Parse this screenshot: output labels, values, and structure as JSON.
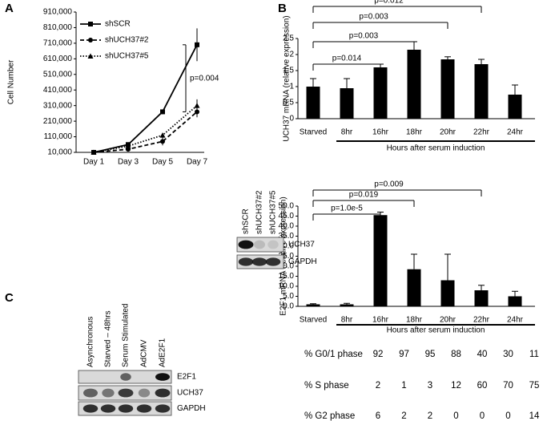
{
  "panel_labels": [
    "A",
    "B",
    "C"
  ],
  "chart_data": [
    {
      "type": "line",
      "ylabel": "Cell Number",
      "categories": [
        "Day 1",
        "Day 3",
        "Day 5",
        "Day 7"
      ],
      "ylim": [
        10000,
        910000
      ],
      "yticks": [
        {
          "value": 10000,
          "label": "10,000"
        },
        {
          "value": 110000,
          "label": "110,000"
        },
        {
          "value": 210000,
          "label": "210,000"
        },
        {
          "value": 310000,
          "label": "310,000"
        },
        {
          "value": 410000,
          "label": "410,000"
        },
        {
          "value": 510000,
          "label": "510,000"
        },
        {
          "value": 610000,
          "label": "610,000"
        },
        {
          "value": 710000,
          "label": "710,000"
        },
        {
          "value": 810000,
          "label": "810,000"
        },
        {
          "value": 910000,
          "label": "910,000"
        }
      ],
      "series": [
        {
          "name": "shSCR",
          "color": "#000000",
          "dash": "solid",
          "marker": "square",
          "values": [
            10000,
            60000,
            270000,
            700000
          ],
          "errors": [
            5000,
            15000,
            15000,
            105000
          ]
        },
        {
          "name": "shUCH37#2",
          "color": "#000000",
          "dash": "dashed",
          "marker": "circle",
          "values": [
            10000,
            30000,
            80000,
            270000
          ],
          "errors": [
            5000,
            8000,
            25000,
            35000
          ]
        },
        {
          "name": "shUCH37#5",
          "color": "#000000",
          "dash": "dotted",
          "marker": "triangle",
          "values": [
            10000,
            50000,
            120000,
            310000
          ],
          "errors": [
            5000,
            10000,
            15000,
            40000
          ]
        }
      ],
      "annotations": [
        "p=0.004"
      ]
    },
    {
      "type": "bar",
      "ylabel": "UCH37 mRNA (relative expression)",
      "xlabel": "Hours after serum induction",
      "categories": [
        "Starved",
        "8hr",
        "16hr",
        "18hr",
        "20hr",
        "22hr",
        "24hr"
      ],
      "values": [
        1.0,
        0.95,
        1.6,
        2.15,
        1.85,
        1.7,
        0.75
      ],
      "errors": [
        0.25,
        0.3,
        0.1,
        0.25,
        0.08,
        0.15,
        0.3
      ],
      "color": "#000000",
      "ylim": [
        0,
        2.5
      ],
      "yticks": [
        0,
        0.5,
        1,
        1.5,
        2,
        2.5
      ],
      "annotations": [
        "p=0.012",
        "p=0.003",
        "p=0.003",
        "p=0.014"
      ]
    },
    {
      "type": "bar",
      "ylabel": "E2F1 mRNA (relative expression)",
      "xlabel": "Hours after serum induction",
      "categories": [
        "Starved",
        "8hr",
        "16hr",
        "18hr",
        "20hr",
        "22hr",
        "24hr"
      ],
      "values": [
        1,
        1,
        45.5,
        18.5,
        13,
        8,
        5
      ],
      "errors": [
        0.3,
        0.5,
        1.5,
        7.5,
        13,
        2.5,
        2.5
      ],
      "color": "#000000",
      "ylim": [
        0,
        50
      ],
      "yticks": [
        {
          "value": 0,
          "label": "0.0"
        },
        {
          "value": 5,
          "label": "5.0"
        },
        {
          "value": 10,
          "label": "10.0"
        },
        {
          "value": 15,
          "label": "15.0"
        },
        {
          "value": 20,
          "label": "20.0"
        },
        {
          "value": 25,
          "label": "25.0"
        },
        {
          "value": 30,
          "label": "30.0"
        },
        {
          "value": 35,
          "label": "35.0"
        },
        {
          "value": 40,
          "label": "40.0"
        },
        {
          "value": 45,
          "label": "45.0"
        },
        {
          "value": 50,
          "label": "50.0"
        }
      ],
      "annotations": [
        "p=0.009",
        "p=0.019",
        "p=1.0e-5"
      ]
    }
  ],
  "blots": [
    {
      "lanes": [
        "shSCR",
        "shUCH37#2",
        "shUCH37#5"
      ],
      "rows": [
        "UCH37",
        "GAPDH"
      ]
    },
    {
      "lanes": [
        "Asynchronous",
        "Starved – 48hrs",
        "Serum Stimulated",
        "AdCMV",
        "AdE2F1"
      ],
      "rows": [
        "E2F1",
        "UCH37",
        "GAPDH"
      ]
    }
  ],
  "table": {
    "rows": [
      {
        "label": "% G0/1 phase",
        "values": [
          92,
          97,
          95,
          88,
          40,
          30,
          11
        ]
      },
      {
        "label": "% S phase",
        "values": [
          2,
          1,
          3,
          12,
          60,
          70,
          75
        ]
      },
      {
        "label": "% G2 phase",
        "values": [
          6,
          2,
          2,
          0,
          0,
          0,
          14
        ]
      }
    ]
  }
}
